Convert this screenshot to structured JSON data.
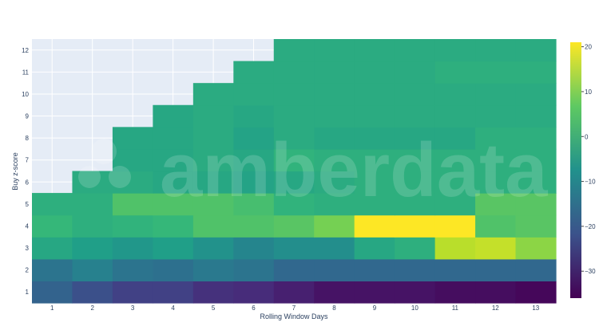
{
  "chart_data": {
    "type": "heatmap",
    "title": "",
    "xlabel": "Rolling Window Days",
    "ylabel": "Buy z-score",
    "x": [
      1,
      2,
      3,
      4,
      5,
      6,
      7,
      8,
      9,
      10,
      11,
      12,
      13
    ],
    "y": [
      1,
      2,
      3,
      4,
      5,
      6,
      7,
      8,
      9,
      10,
      11,
      12
    ],
    "zlim": [
      -36,
      21
    ],
    "colorbar_ticks": [
      20,
      10,
      0,
      -10,
      -20,
      -30
    ],
    "colorscale": "viridis",
    "grid": true,
    "watermark": "amberdata",
    "values": [
      [
        -18,
        -22,
        -25,
        -25,
        -28,
        -29,
        -31,
        -33,
        -33,
        -33,
        -34,
        -34,
        -35
      ],
      [
        -14,
        -11,
        -14,
        -15,
        -13,
        -14,
        -17,
        -17,
        -17,
        -17,
        -17,
        -17,
        -17
      ],
      [
        -2,
        -4,
        -6,
        -4,
        -7,
        -10,
        -8,
        -8,
        -2,
        0,
        15,
        16,
        11
      ],
      [
        2,
        0,
        1,
        2,
        5,
        5,
        6,
        9,
        21,
        21,
        21,
        5,
        6
      ],
      [
        0,
        0,
        5,
        5,
        5,
        4,
        1,
        0,
        0,
        0,
        0,
        6,
        6
      ],
      [
        null,
        -1,
        -1,
        -2,
        -2,
        -3,
        -2,
        -1,
        0,
        0,
        0,
        0,
        0
      ],
      [
        null,
        null,
        -2,
        -2,
        -1,
        -2,
        1,
        0,
        0,
        0,
        0,
        0,
        0
      ],
      [
        null,
        null,
        -2,
        -2,
        -1,
        -3,
        -1,
        -2,
        -2,
        -2,
        -2,
        0,
        0
      ],
      [
        null,
        null,
        null,
        -2,
        -1,
        -2,
        -1,
        -1,
        -1,
        -1,
        -1,
        -1,
        -1
      ],
      [
        null,
        null,
        null,
        null,
        -1,
        -1,
        -1,
        -1,
        -1,
        -1,
        -1,
        -1,
        -1
      ],
      [
        null,
        null,
        null,
        null,
        null,
        -1,
        -1,
        -1,
        -1,
        -1,
        0,
        0,
        0
      ],
      [
        null,
        null,
        null,
        null,
        null,
        null,
        -1,
        -1,
        -1,
        -1,
        -1,
        -1,
        -1
      ]
    ]
  }
}
